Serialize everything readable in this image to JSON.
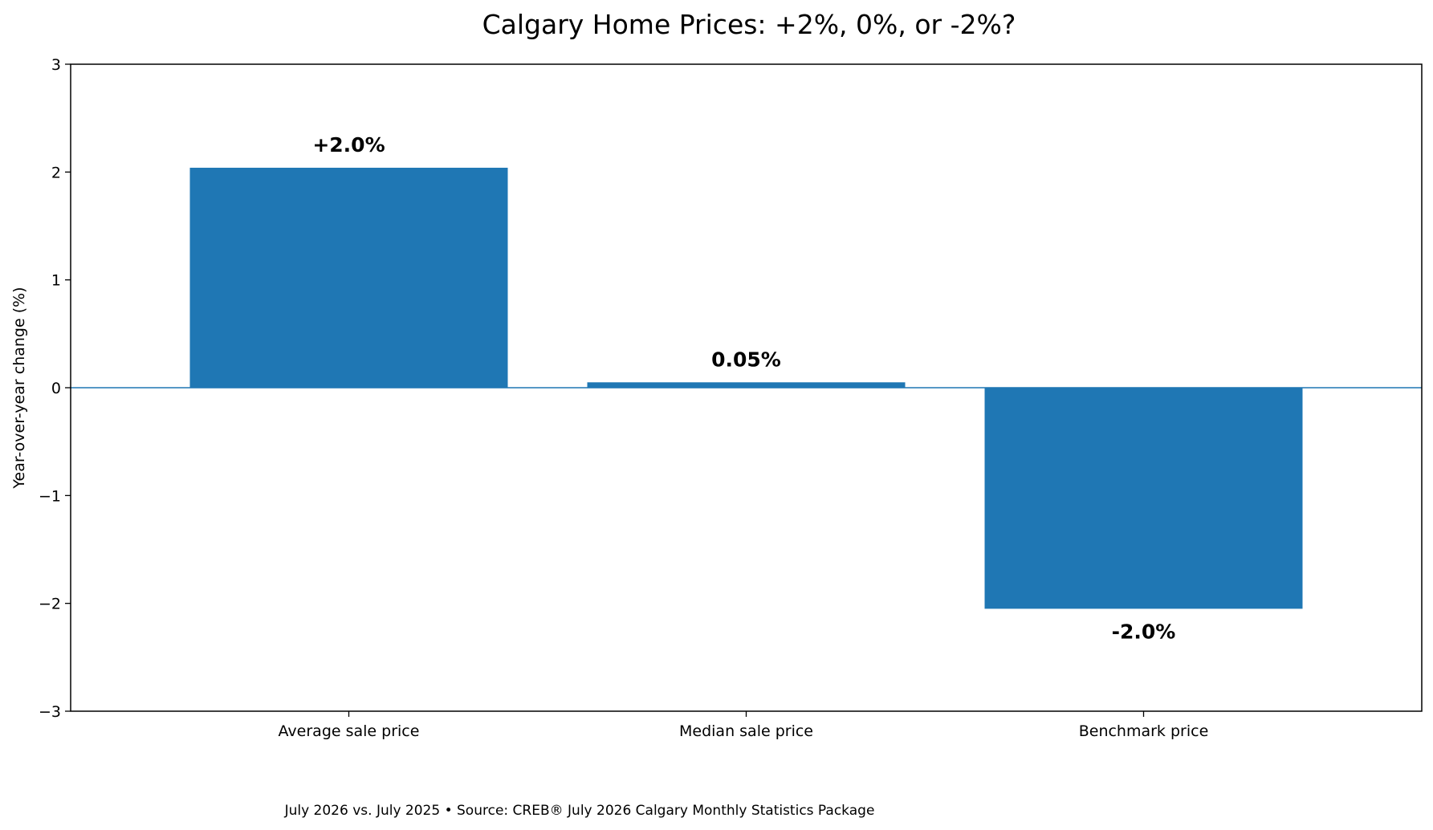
{
  "chart_data": {
    "type": "bar",
    "title": "Calgary Home Prices: +2%, 0%, or -2%?",
    "xlabel": "",
    "ylabel": "Year-over-year change (%)",
    "categories": [
      "Average sale price",
      "Median sale price",
      "Benchmark price"
    ],
    "values": [
      2.04,
      0.05,
      -2.05
    ],
    "data_labels": [
      "+2.0%",
      "0.05%",
      "-2.0%"
    ],
    "ylim": [
      -3,
      3
    ],
    "yticks": [
      3,
      2,
      1,
      0,
      -1,
      -2,
      -3
    ],
    "ytick_labels": [
      "3",
      "2",
      "1",
      "0",
      "−1",
      "−2",
      "−3"
    ],
    "bar_color": "#1f77b4",
    "zero_line": true,
    "grid": false,
    "legend": "none"
  },
  "caption": "July 2026 vs. July 2025 • Source: CREB® July 2026 Calgary Monthly Statistics Package"
}
